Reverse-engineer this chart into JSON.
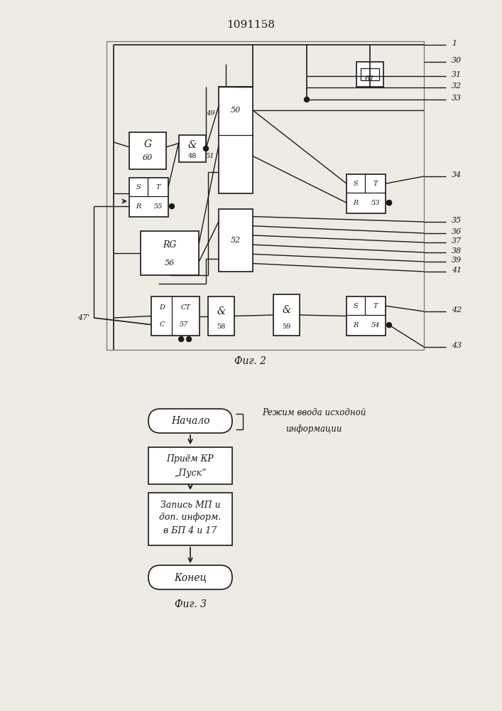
{
  "title": "1091158",
  "fig2_label": "Фиг. 2",
  "fig3_label": "Фиг. 3",
  "background_color": "#eeebe4",
  "line_color": "#1a1a1a",
  "nacalo_label": "Начало",
  "konec_label": "Конец",
  "priem_line1": "Приём КР",
  "priem_line2": "„Пуск“",
  "zapis_line1": "Запись МП и",
  "zapis_line2": "доп. информ.",
  "zapis_line3": "в БП 4 и 17",
  "annot_line1": "Режим ввода исходной",
  "annot_line2": "информации",
  "label_47": "47'",
  "label_G": "G",
  "label_60": "60",
  "label_RG": "RG",
  "label_56": "56",
  "label_S": "S",
  "label_T": "T",
  "label_R": "R",
  "label_amp": "&",
  "label_D": "D",
  "label_CT": "CT",
  "label_C": "C"
}
